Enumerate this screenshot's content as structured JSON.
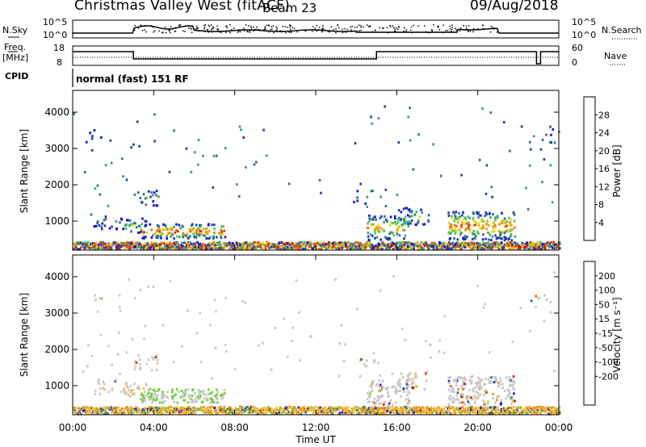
{
  "header": {
    "station": "Christmas Valley West (fitACF)",
    "beam": "Beam 23",
    "date": "09/Aug/2018"
  },
  "left_labels": {
    "nsky": "N.Sky",
    "freq_top": "Freq.",
    "freq_unit": "[MHz]",
    "cpid": "CPID"
  },
  "right_labels": {
    "nsearch": "N.Search",
    "nave": "Nave"
  },
  "noise_ticks_left": [
    "10^5",
    "10^0"
  ],
  "noise_ticks_right": [
    "10^5",
    "10^0"
  ],
  "freq_ticks": [
    "18",
    "8"
  ],
  "nave_ticks": [
    "60",
    "0"
  ],
  "cpid_text": "normal (fast) 151 RF",
  "colors": {
    "power": [
      "#1010e0",
      "#1a3ea8",
      "#2f6e8e",
      "#3d9a78",
      "#4cc84c",
      "#dddd10",
      "#f0a000",
      "#ff7000",
      "#f03000",
      "#d00000"
    ],
    "velocity": [
      "#2020c0",
      "#2e5ca8",
      "#3a8060",
      "#6fd040",
      "#c8c8c8",
      "#f0c040",
      "#f09010",
      "#f06000",
      "#e02000",
      "#c00000"
    ]
  },
  "chart_data": [
    {
      "type": "heatmap",
      "name": "power",
      "ylabel": "Slant Range [km]",
      "yticks": [
        "1000",
        "2000",
        "3000",
        "4000"
      ],
      "ylim": [
        200,
        4600
      ],
      "xlim": [
        0,
        24
      ],
      "colorbar_label": "Power [dB]",
      "colorbar_ticks": [
        "4",
        "8",
        "12",
        "16",
        "20",
        "24",
        "28"
      ]
    },
    {
      "type": "heatmap",
      "name": "velocity",
      "xlabel": "Time UT",
      "xticks": [
        "00:00",
        "04:00",
        "08:00",
        "12:00",
        "16:00",
        "20:00",
        "00:00"
      ],
      "ylabel": "Slant Range [km]",
      "yticks": [
        "1000",
        "2000",
        "3000",
        "4000"
      ],
      "ylim": [
        200,
        4600
      ],
      "xlim": [
        0,
        24
      ],
      "colorbar_label": "Velocity [m s⁻¹]",
      "colorbar_ticks": [
        "200",
        "100",
        "50",
        "15",
        "-15",
        "-50",
        "-100",
        "-200"
      ]
    }
  ]
}
